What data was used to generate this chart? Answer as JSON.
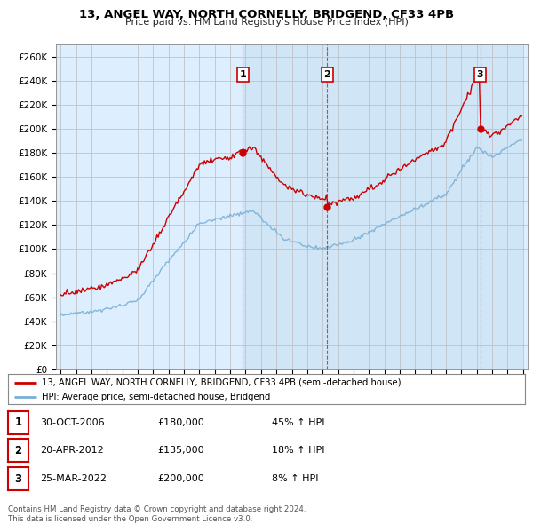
{
  "title": "13, ANGEL WAY, NORTH CORNELLY, BRIDGEND, CF33 4PB",
  "subtitle": "Price paid vs. HM Land Registry's House Price Index (HPI)",
  "ylim": [
    0,
    270000
  ],
  "yticks": [
    0,
    20000,
    40000,
    60000,
    80000,
    100000,
    120000,
    140000,
    160000,
    180000,
    200000,
    220000,
    240000,
    260000
  ],
  "sale1_date": "30-OCT-2006",
  "sale1_price": 180000,
  "sale1_pct": "45%",
  "sale2_date": "20-APR-2012",
  "sale2_price": 135000,
  "sale2_pct": "18%",
  "sale3_date": "25-MAR-2022",
  "sale3_price": 200000,
  "sale3_pct": "8%",
  "sale1_x": 2006.83,
  "sale2_x": 2012.3,
  "sale3_x": 2022.22,
  "red_color": "#cc0000",
  "blue_color": "#7ab0d4",
  "grid_color": "#bbbbbb",
  "plot_bg": "#ddeeff",
  "shade_bg": "#c8dff0",
  "footnote": "Contains HM Land Registry data © Crown copyright and database right 2024.\nThis data is licensed under the Open Government Licence v3.0.",
  "legend_label_red": "13, ANGEL WAY, NORTH CORNELLY, BRIDGEND, CF33 4PB (semi-detached house)",
  "legend_label_blue": "HPI: Average price, semi-detached house, Bridgend"
}
